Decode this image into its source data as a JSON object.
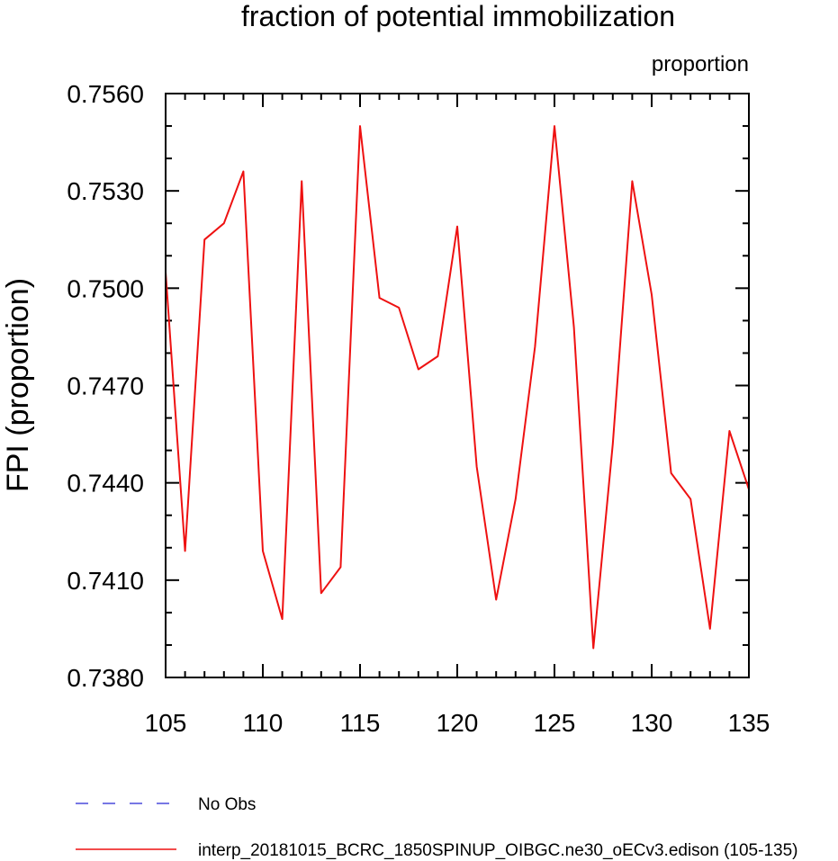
{
  "chart_data": {
    "type": "line",
    "title": "fraction of potential immobilization",
    "units_label": "proportion",
    "ylabel": "FPI  (proportion)",
    "xlabel": "",
    "xlim": [
      105,
      135
    ],
    "ylim": [
      0.738,
      0.756
    ],
    "x_ticks": [
      105,
      110,
      115,
      120,
      125,
      130,
      135
    ],
    "x_tick_labels": [
      "105",
      "110",
      "115",
      "120",
      "125",
      "130",
      "135"
    ],
    "y_ticks": [
      0.738,
      0.741,
      0.744,
      0.747,
      0.75,
      0.753,
      0.756
    ],
    "y_tick_labels": [
      "0.7380",
      "0.7410",
      "0.7440",
      "0.7470",
      "0.7500",
      "0.7530",
      "0.7560"
    ],
    "x_minor_step": 1,
    "y_minor_step": 0.001,
    "grid": false,
    "legend_position": "bottom",
    "series": [
      {
        "name": "No Obs",
        "color": "#4a4adc",
        "dash": "dashed",
        "x": [],
        "y": []
      },
      {
        "name": "interp_20181015_BCRC_1850SPINUP_OIBGC.ne30_oECv3.edison (105-135)",
        "color": "#ee1111",
        "dash": "solid",
        "x": [
          105,
          106,
          107,
          108,
          109,
          110,
          111,
          112,
          113,
          114,
          115,
          116,
          117,
          118,
          119,
          120,
          121,
          122,
          123,
          124,
          125,
          126,
          127,
          128,
          129,
          130,
          131,
          132,
          133,
          134,
          135
        ],
        "y": [
          0.7505,
          0.7419,
          0.7515,
          0.752,
          0.7536,
          0.7419,
          0.7398,
          0.7533,
          0.7406,
          0.7414,
          0.755,
          0.7497,
          0.7494,
          0.7475,
          0.7479,
          0.7519,
          0.7445,
          0.7404,
          0.7435,
          0.7482,
          0.755,
          0.7488,
          0.7389,
          0.7452,
          0.7533,
          0.7498,
          0.7443,
          0.7435,
          0.7395,
          0.7456,
          0.7438
        ]
      }
    ]
  }
}
